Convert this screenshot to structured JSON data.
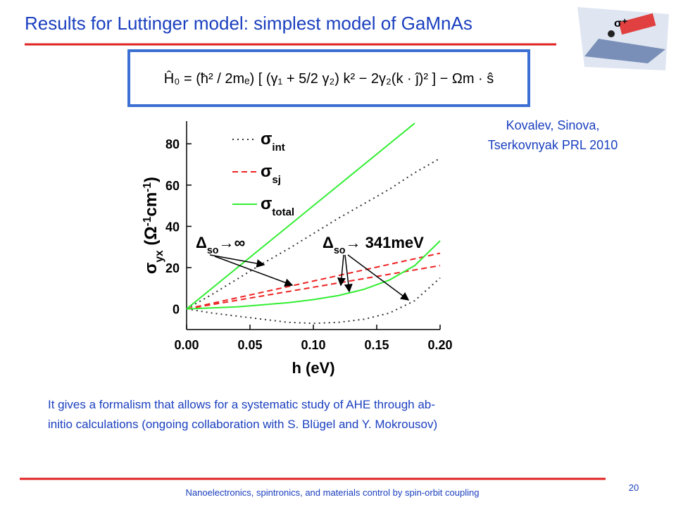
{
  "header": {
    "title": "Results for Luttinger model: simplest model of GaMnAs"
  },
  "equation": "Ĥ₀ = (ħ² / 2mₑ) [ (γ₁ + 5/2 γ₂) k² − 2γ₂(k · ĵ)² ] − Ωm · ŝ",
  "citation": [
    "Kovalev, Sinova,",
    "Tserkovnyak PRL 2010"
  ],
  "chart_data": {
    "type": "line",
    "x_label": "h (eV)",
    "y_label": [
      {
        "text": "σ"
      },
      {
        "text": "yx",
        "sub": true
      },
      {
        "text": " (Ω"
      },
      {
        "text": "-1",
        "sup": true
      },
      {
        "text": "cm"
      },
      {
        "text": "-1",
        "sup": true
      },
      {
        "text": ")"
      }
    ],
    "x": [
      0,
      0.02,
      0.04,
      0.06,
      0.08,
      0.1,
      0.12,
      0.14,
      0.16,
      0.18,
      0.2
    ],
    "xlim": [
      0,
      0.2
    ],
    "ylim": [
      -10,
      91
    ],
    "xticks": [
      {
        "value": 0,
        "label": "0.00"
      },
      {
        "value": 0.05,
        "label": "0.05"
      },
      {
        "value": 0.1,
        "label": "0.10"
      },
      {
        "value": 0.15,
        "label": "0.15"
      },
      {
        "value": 0.2,
        "label": "0.20"
      }
    ],
    "yticks": [
      0,
      20,
      40,
      60,
      80
    ],
    "series": [
      {
        "name": "σ",
        "subscript": "int",
        "color": "#333333",
        "dash": "2,5",
        "curves": [
          [
            0,
            7,
            14.5,
            22,
            29,
            36.5,
            44,
            51,
            58,
            66,
            73
          ],
          [
            0,
            -2,
            -3.5,
            -5,
            -6.5,
            -7,
            -6.5,
            -5,
            -2,
            4,
            15
          ]
        ]
      },
      {
        "name": "σ",
        "subscript": "sj",
        "color": "#ee2222",
        "dash": "8,5",
        "curves": [
          [
            0,
            2.7,
            5.4,
            8.1,
            10.8,
            13.5,
            16.2,
            18.9,
            21.6,
            24.3,
            27
          ],
          [
            0,
            2.1,
            4.2,
            6.3,
            8.4,
            10.5,
            12.6,
            14.7,
            16.8,
            18.9,
            21
          ]
        ]
      },
      {
        "name": "σ",
        "subscript": "total",
        "color": "#33ee33",
        "dash": "none",
        "curves": [
          [
            0,
            10,
            20,
            30,
            40,
            50,
            60,
            70,
            80,
            90,
            null
          ],
          [
            0,
            0.5,
            1,
            2,
            3,
            4.5,
            6.5,
            9.5,
            14,
            21,
            33
          ]
        ]
      }
    ],
    "annotations": [
      [
        {
          "text": "Δ"
        },
        {
          "text": "so",
          "sub": true
        },
        {
          "text": "→∞"
        }
      ],
      [
        {
          "text": "Δ"
        },
        {
          "text": "so",
          "sub": true
        },
        {
          "text": "→ 341meV"
        }
      ]
    ]
  },
  "body": [
    "It gives a formalism that allows for a systematic study of AHE through ab-",
    "initio calculations (ongoing collaboration with S. Blügel and Y. Mokrousov)"
  ],
  "footer": {
    "text": "Nanoelectronics, spintronics, and materials control by spin-orbit coupling",
    "page": "20"
  }
}
